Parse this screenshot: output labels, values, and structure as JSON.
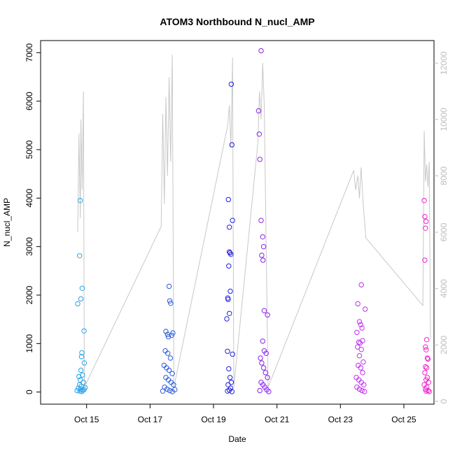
{
  "chart_data": {
    "type": "scatter",
    "title": "ATOM3 Northbound N_nucl_AMP",
    "xlabel": "Date",
    "ylabel": "N_nucl_AMP",
    "x_ticks": [
      "Oct 15",
      "Oct 17",
      "Oct 19",
      "Oct 21",
      "Oct 23",
      "Oct 25"
    ],
    "x_tick_days": [
      15,
      17,
      19,
      21,
      23,
      25
    ],
    "xlim_days": [
      13.55,
      25.95
    ],
    "ylim": [
      -250,
      7250
    ],
    "y_ticks": [
      0,
      1000,
      2000,
      3000,
      4000,
      5000,
      6000,
      7000
    ],
    "y2lim": [
      -100,
      12800
    ],
    "y2_ticks": [
      0,
      2000,
      4000,
      6000,
      8000,
      10000,
      12000
    ],
    "y2_color": "#bdbdbd",
    "grid": false,
    "legend": "none",
    "series": [
      {
        "color": "#29a3e8",
        "points": [
          [
            14.72,
            1820
          ],
          [
            14.78,
            2810
          ],
          [
            14.8,
            3950
          ],
          [
            14.82,
            1920
          ],
          [
            14.86,
            2140
          ],
          [
            14.85,
            810
          ],
          [
            14.84,
            730
          ],
          [
            14.92,
            1260
          ],
          [
            14.93,
            600
          ],
          [
            14.82,
            450
          ],
          [
            14.87,
            350
          ],
          [
            14.76,
            320
          ],
          [
            14.8,
            250
          ],
          [
            14.9,
            200
          ],
          [
            14.78,
            150
          ],
          [
            14.83,
            120
          ],
          [
            14.74,
            80
          ],
          [
            14.81,
            60
          ],
          [
            14.88,
            40
          ],
          [
            14.79,
            20
          ],
          [
            14.85,
            10
          ],
          [
            14.92,
            50
          ],
          [
            14.7,
            30
          ],
          [
            14.95,
            90
          ]
        ]
      },
      {
        "color": "#2a5bd8",
        "points": [
          [
            17.5,
            1250
          ],
          [
            17.55,
            1190
          ],
          [
            17.58,
            1140
          ],
          [
            17.6,
            2180
          ],
          [
            17.62,
            1880
          ],
          [
            17.65,
            1830
          ],
          [
            17.68,
            1170
          ],
          [
            17.72,
            1220
          ],
          [
            17.48,
            850
          ],
          [
            17.56,
            800
          ],
          [
            17.64,
            700
          ],
          [
            17.44,
            550
          ],
          [
            17.52,
            500
          ],
          [
            17.6,
            450
          ],
          [
            17.7,
            380
          ],
          [
            17.5,
            300
          ],
          [
            17.58,
            250
          ],
          [
            17.66,
            200
          ],
          [
            17.74,
            150
          ],
          [
            17.46,
            100
          ],
          [
            17.54,
            60
          ],
          [
            17.62,
            30
          ],
          [
            17.7,
            10
          ],
          [
            17.78,
            50
          ],
          [
            17.4,
            20
          ]
        ]
      },
      {
        "color": "#2222e0",
        "points": [
          [
            19.42,
            1510
          ],
          [
            19.45,
            1940
          ],
          [
            19.46,
            1910
          ],
          [
            19.48,
            2600
          ],
          [
            19.5,
            2890
          ],
          [
            19.52,
            2870
          ],
          [
            19.55,
            2840
          ],
          [
            19.5,
            3400
          ],
          [
            19.47,
            3970
          ],
          [
            19.6,
            3540
          ],
          [
            19.58,
            5100
          ],
          [
            19.56,
            6350
          ],
          [
            19.53,
            2080
          ],
          [
            19.5,
            1620
          ],
          [
            19.44,
            840
          ],
          [
            19.6,
            780
          ],
          [
            19.48,
            480
          ],
          [
            19.52,
            300
          ],
          [
            19.56,
            200
          ],
          [
            19.46,
            150
          ],
          [
            19.54,
            80
          ],
          [
            19.5,
            40
          ],
          [
            19.58,
            10
          ],
          [
            19.44,
            20
          ]
        ]
      },
      {
        "color": "#8a22ee",
        "points": [
          [
            20.42,
            5800
          ],
          [
            20.44,
            5320
          ],
          [
            20.46,
            4800
          ],
          [
            20.5,
            7040
          ],
          [
            20.5,
            3540
          ],
          [
            20.55,
            3200
          ],
          [
            20.58,
            3000
          ],
          [
            20.56,
            2720
          ],
          [
            20.52,
            2820
          ],
          [
            20.6,
            1680
          ],
          [
            20.7,
            1590
          ],
          [
            20.55,
            1050
          ],
          [
            20.6,
            850
          ],
          [
            20.66,
            800
          ],
          [
            20.48,
            700
          ],
          [
            20.52,
            600
          ],
          [
            20.58,
            500
          ],
          [
            20.64,
            400
          ],
          [
            20.7,
            300
          ],
          [
            20.5,
            200
          ],
          [
            20.56,
            150
          ],
          [
            20.62,
            100
          ],
          [
            20.68,
            50
          ],
          [
            20.46,
            30
          ],
          [
            20.74,
            10
          ]
        ]
      },
      {
        "color": "#c030ee",
        "points": [
          [
            23.52,
            1230
          ],
          [
            23.55,
            1820
          ],
          [
            23.6,
            1450
          ],
          [
            23.66,
            2210
          ],
          [
            23.64,
            1390
          ],
          [
            23.68,
            1320
          ],
          [
            23.7,
            1060
          ],
          [
            23.78,
            1710
          ],
          [
            23.58,
            1030
          ],
          [
            23.62,
            1010
          ],
          [
            23.54,
            930
          ],
          [
            23.66,
            880
          ],
          [
            23.6,
            750
          ],
          [
            23.72,
            620
          ],
          [
            23.56,
            550
          ],
          [
            23.64,
            500
          ],
          [
            23.7,
            400
          ],
          [
            23.5,
            300
          ],
          [
            23.58,
            250
          ],
          [
            23.66,
            200
          ],
          [
            23.74,
            150
          ],
          [
            23.52,
            100
          ],
          [
            23.6,
            60
          ],
          [
            23.68,
            30
          ],
          [
            23.76,
            10
          ]
        ]
      },
      {
        "color": "#ee22cc",
        "points": [
          [
            25.64,
            3950
          ],
          [
            25.66,
            3620
          ],
          [
            25.7,
            3520
          ],
          [
            25.68,
            3380
          ],
          [
            25.66,
            2720
          ],
          [
            25.72,
            1080
          ],
          [
            25.68,
            930
          ],
          [
            25.7,
            870
          ],
          [
            25.74,
            700
          ],
          [
            25.76,
            680
          ],
          [
            25.68,
            520
          ],
          [
            25.72,
            500
          ],
          [
            25.66,
            400
          ],
          [
            25.74,
            300
          ],
          [
            25.7,
            250
          ],
          [
            25.78,
            200
          ],
          [
            25.64,
            150
          ],
          [
            25.72,
            100
          ],
          [
            25.68,
            60
          ],
          [
            25.76,
            30
          ],
          [
            25.8,
            10
          ],
          [
            25.7,
            20
          ]
        ]
      }
    ],
    "secondary_line": {
      "color": "#c8c8c8",
      "points": [
        [
          14.72,
          6000
        ],
        [
          14.76,
          9500
        ],
        [
          14.8,
          6500
        ],
        [
          14.82,
          10000
        ],
        [
          14.86,
          7500
        ],
        [
          14.9,
          11000
        ],
        [
          14.93,
          500
        ],
        [
          17.35,
          6200
        ],
        [
          17.4,
          10200
        ],
        [
          17.45,
          7000
        ],
        [
          17.5,
          10800
        ],
        [
          17.55,
          8000
        ],
        [
          17.6,
          11500
        ],
        [
          17.65,
          8500
        ],
        [
          17.7,
          12300
        ],
        [
          17.75,
          500
        ],
        [
          19.45,
          9800
        ],
        [
          19.5,
          10500
        ],
        [
          19.55,
          9000
        ],
        [
          19.6,
          12200
        ],
        [
          19.64,
          500
        ],
        [
          20.4,
          9200
        ],
        [
          20.45,
          11000
        ],
        [
          20.5,
          10000
        ],
        [
          20.55,
          12000
        ],
        [
          20.6,
          10500
        ],
        [
          20.72,
          500
        ],
        [
          23.42,
          8200
        ],
        [
          23.48,
          7500
        ],
        [
          23.55,
          8000
        ],
        [
          23.6,
          7200
        ],
        [
          23.65,
          8300
        ],
        [
          23.72,
          7000
        ],
        [
          23.8,
          5800
        ],
        [
          25.6,
          3400
        ],
        [
          25.64,
          9600
        ],
        [
          25.68,
          7800
        ],
        [
          25.72,
          8400
        ],
        [
          25.76,
          7600
        ],
        [
          25.8,
          8500
        ],
        [
          25.84,
          2200
        ]
      ]
    }
  }
}
